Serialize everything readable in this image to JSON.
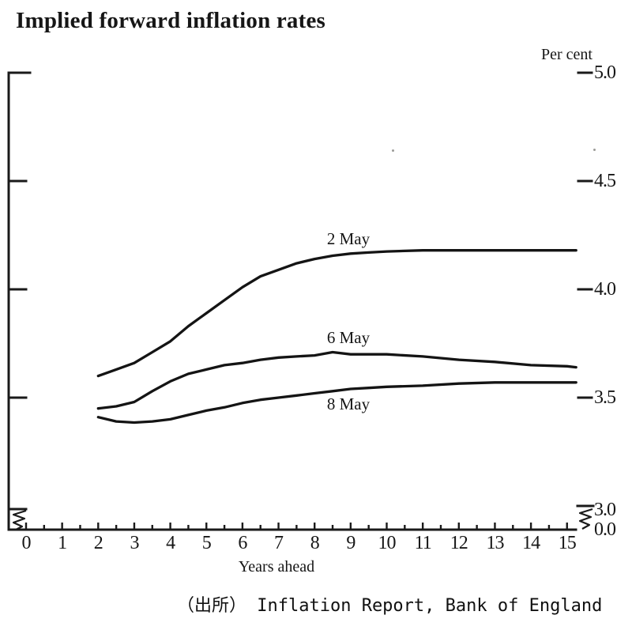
{
  "title": "Implied forward inflation rates",
  "caption": "（出所） Inflation Report, Bank of England",
  "chart_data": {
    "type": "line",
    "title": "Implied forward inflation rates",
    "xlabel": "Years ahead",
    "ylabel": "Per cent",
    "x_ticks": [
      0,
      1,
      2,
      3,
      4,
      5,
      6,
      7,
      8,
      9,
      10,
      11,
      12,
      13,
      14,
      15
    ],
    "xlim": [
      0,
      15.3
    ],
    "grid": false,
    "legend_position": "inline-curve-labels",
    "y_axis": {
      "unit_label": "Per cent",
      "ticks": [
        {
          "label": "5.0",
          "value": 5.0
        },
        {
          "label": "4.5",
          "value": 4.5
        },
        {
          "label": "4.0",
          "value": 4.0
        },
        {
          "label": "3.5",
          "value": 3.5
        },
        {
          "label": "3.0",
          "value": 3.0
        },
        {
          "label": "0.0",
          "value": 0.0
        }
      ],
      "axis_break_between": [
        3.0,
        0.0
      ],
      "display_range": [
        3.0,
        5.0
      ]
    },
    "line_color": "#1a1a1a",
    "background": "#ffffff",
    "series": [
      {
        "name": "2 May",
        "points": [
          [
            2,
            3.6
          ],
          [
            2.5,
            3.63
          ],
          [
            3,
            3.66
          ],
          [
            3.5,
            3.71
          ],
          [
            4,
            3.76
          ],
          [
            4.5,
            3.83
          ],
          [
            5,
            3.89
          ],
          [
            5.5,
            3.95
          ],
          [
            6,
            4.01
          ],
          [
            6.5,
            4.06
          ],
          [
            7,
            4.09
          ],
          [
            7.5,
            4.12
          ],
          [
            8,
            4.14
          ],
          [
            8.5,
            4.155
          ],
          [
            9,
            4.165
          ],
          [
            9.5,
            4.17
          ],
          [
            10,
            4.175
          ],
          [
            11,
            4.18
          ],
          [
            12,
            4.18
          ],
          [
            13,
            4.18
          ],
          [
            14,
            4.18
          ],
          [
            15,
            4.18
          ],
          [
            15.25,
            4.18
          ]
        ]
      },
      {
        "name": "6 May",
        "points": [
          [
            2,
            3.45
          ],
          [
            2.5,
            3.46
          ],
          [
            3,
            3.48
          ],
          [
            3.5,
            3.53
          ],
          [
            4,
            3.575
          ],
          [
            4.5,
            3.61
          ],
          [
            5,
            3.63
          ],
          [
            5.5,
            3.65
          ],
          [
            6,
            3.66
          ],
          [
            6.5,
            3.675
          ],
          [
            7,
            3.685
          ],
          [
            7.5,
            3.69
          ],
          [
            8,
            3.695
          ],
          [
            8.5,
            3.71
          ],
          [
            9,
            3.7
          ],
          [
            9.5,
            3.7
          ],
          [
            10,
            3.7
          ],
          [
            11,
            3.69
          ],
          [
            12,
            3.675
          ],
          [
            13,
            3.665
          ],
          [
            14,
            3.65
          ],
          [
            15,
            3.645
          ],
          [
            15.25,
            3.64
          ]
        ]
      },
      {
        "name": "8 May",
        "points": [
          [
            2,
            3.41
          ],
          [
            2.5,
            3.39
          ],
          [
            3,
            3.385
          ],
          [
            3.5,
            3.39
          ],
          [
            4,
            3.4
          ],
          [
            4.5,
            3.42
          ],
          [
            5,
            3.44
          ],
          [
            5.5,
            3.455
          ],
          [
            6,
            3.475
          ],
          [
            6.5,
            3.49
          ],
          [
            7,
            3.5
          ],
          [
            7.5,
            3.51
          ],
          [
            8,
            3.52
          ],
          [
            8.5,
            3.53
          ],
          [
            9,
            3.54
          ],
          [
            9.5,
            3.545
          ],
          [
            10,
            3.55
          ],
          [
            11,
            3.555
          ],
          [
            12,
            3.565
          ],
          [
            13,
            3.57
          ],
          [
            14,
            3.57
          ],
          [
            15,
            3.57
          ],
          [
            15.25,
            3.57
          ]
        ]
      }
    ]
  }
}
